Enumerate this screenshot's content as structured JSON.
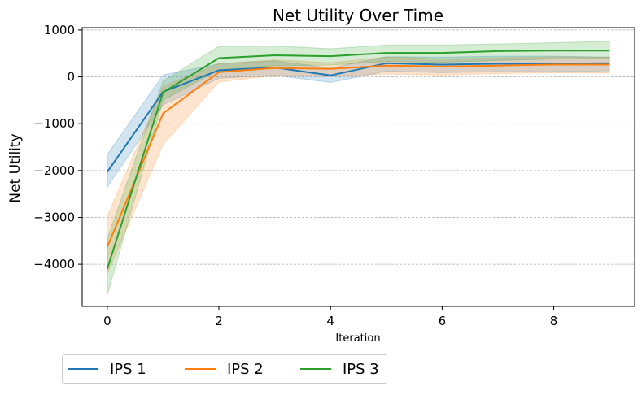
{
  "chart_data": {
    "type": "line",
    "title": "Net Utility Over Time",
    "xlabel": "Iteration",
    "ylabel": "Net Utility",
    "xlim": [
      -0.45,
      9.45
    ],
    "ylim": [
      -4900,
      1050
    ],
    "x_ticks": [
      0,
      2,
      4,
      6,
      8
    ],
    "y_ticks": [
      1000,
      0,
      -1000,
      -2000,
      -3000,
      -4000
    ],
    "y_tick_labels": [
      "1000",
      "0",
      "−1000",
      "−2000",
      "−3000",
      "−4000"
    ],
    "grid": "horizontal-dashed",
    "legend_position": "bottom-left, below axes",
    "x": [
      0,
      1,
      2,
      3,
      4,
      5,
      6,
      7,
      8,
      9
    ],
    "series": [
      {
        "name": "IPS 1",
        "color": "#1f77b4",
        "values": [
          -2030,
          -320,
          140,
          200,
          30,
          290,
          260,
          280,
          280,
          290
        ],
        "lower": [
          -2350,
          -600,
          -30,
          30,
          -120,
          120,
          90,
          110,
          110,
          130
        ],
        "upper": [
          -1660,
          40,
          280,
          340,
          190,
          430,
          420,
          440,
          440,
          420
        ]
      },
      {
        "name": "IPS 2",
        "color": "#ff7f0e",
        "values": [
          -3630,
          -780,
          100,
          190,
          170,
          240,
          220,
          240,
          260,
          260
        ],
        "lower": [
          -4200,
          -1440,
          -110,
          30,
          20,
          60,
          40,
          70,
          90,
          80
        ],
        "upper": [
          -2980,
          -200,
          280,
          360,
          300,
          420,
          380,
          400,
          420,
          420
        ]
      },
      {
        "name": "IPS 3",
        "color": "#2ca02c",
        "values": [
          -4100,
          -330,
          400,
          460,
          440,
          510,
          510,
          550,
          560,
          560
        ],
        "lower": [
          -4650,
          -500,
          150,
          240,
          250,
          330,
          310,
          350,
          380,
          390
        ],
        "upper": [
          -3450,
          -90,
          650,
          660,
          600,
          680,
          680,
          700,
          730,
          760
        ]
      }
    ]
  }
}
